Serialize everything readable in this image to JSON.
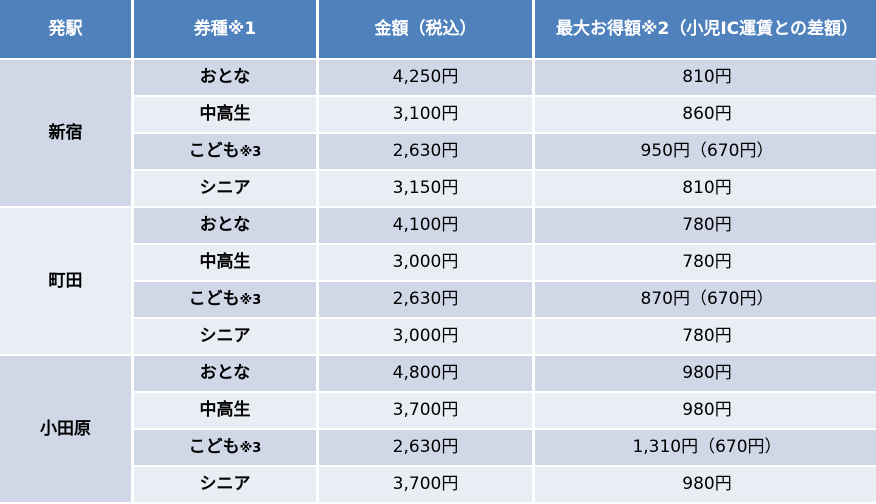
{
  "header": {
    "station": "発駅",
    "ticket": "券種※1",
    "price": "金額（税込）",
    "max_savings": "最大お得額※2（小児IC運賃との差額）"
  },
  "groups": [
    {
      "station": "新宿",
      "rows": [
        {
          "ticket": "おとな",
          "note": "",
          "price": "4,250円",
          "savings": "810円"
        },
        {
          "ticket": "中高生",
          "note": "",
          "price": "3,100円",
          "savings": "860円"
        },
        {
          "ticket": "こども",
          "note": "※3",
          "price": "2,630円",
          "savings": "950円（670円）"
        },
        {
          "ticket": "シニア",
          "note": "",
          "price": "3,150円",
          "savings": "810円"
        }
      ]
    },
    {
      "station": "町田",
      "rows": [
        {
          "ticket": "おとな",
          "note": "",
          "price": "4,100円",
          "savings": "780円"
        },
        {
          "ticket": "中高生",
          "note": "",
          "price": "3,000円",
          "savings": "780円"
        },
        {
          "ticket": "こども",
          "note": "※3",
          "price": "2,630円",
          "savings": "870円（670円）"
        },
        {
          "ticket": "シニア",
          "note": "",
          "price": "3,000円",
          "savings": "780円"
        }
      ]
    },
    {
      "station": "小田原",
      "rows": [
        {
          "ticket": "おとな",
          "note": "",
          "price": "4,800円",
          "savings": "980円"
        },
        {
          "ticket": "中高生",
          "note": "",
          "price": "3,700円",
          "savings": "980円"
        },
        {
          "ticket": "こども",
          "note": "※3",
          "price": "2,630円",
          "savings": "1,310円（670円）"
        },
        {
          "ticket": "シニア",
          "note": "",
          "price": "3,700円",
          "savings": "980円"
        }
      ]
    }
  ]
}
